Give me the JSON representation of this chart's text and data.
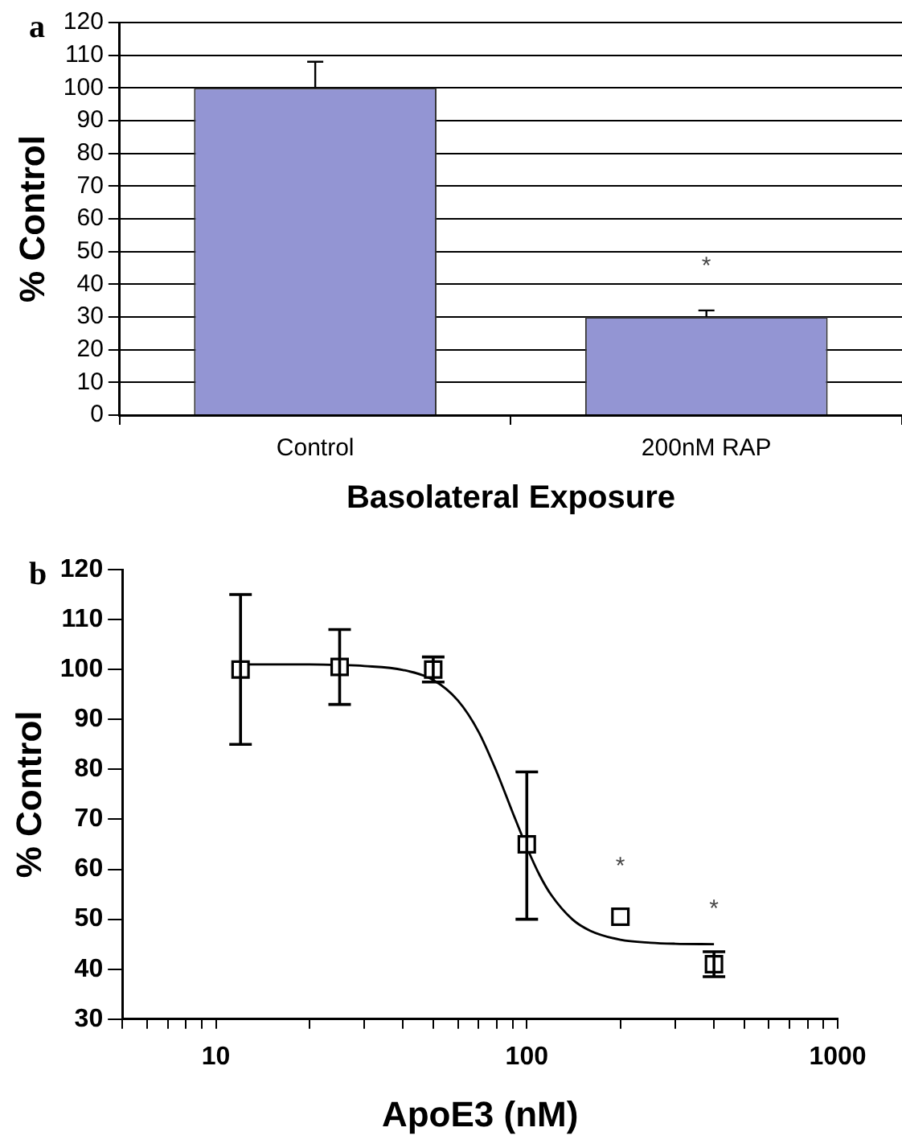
{
  "chart_data": [
    {
      "type": "bar",
      "xlabel": "Basolateral Exposure",
      "ylabel": "% Control",
      "categories": [
        "Control",
        "200nM RAP"
      ],
      "values": [
        100,
        30
      ],
      "color": "#9395d3",
      "errors": [
        [
          100,
          108
        ],
        [
          30,
          32
        ]
      ],
      "ylim": [
        0,
        120
      ],
      "yticks": [
        0,
        10,
        20,
        30,
        40,
        50,
        60,
        70,
        80,
        90,
        100,
        110,
        120
      ],
      "grid": "y",
      "legend": false,
      "annotations": [
        "a",
        {
          "text": "*",
          "x": "200nM RAP",
          "y": 30
        }
      ]
    },
    {
      "type": "scatter",
      "xlabel": "ApoE3 (nM)",
      "ylabel": "% Control",
      "log": "x",
      "grid": false,
      "legend": false,
      "xlim": [
        5,
        1000
      ],
      "xticks": [
        {
          "value": 5,
          "label": null
        },
        {
          "value": 6,
          "label": null
        },
        {
          "value": 7,
          "label": null
        },
        {
          "value": 8,
          "label": null
        },
        {
          "value": 9,
          "label": null
        },
        10,
        {
          "value": 20,
          "label": null
        },
        {
          "value": 30,
          "label": null
        },
        {
          "value": 40,
          "label": null
        },
        {
          "value": 50,
          "label": null
        },
        {
          "value": 60,
          "label": null
        },
        {
          "value": 70,
          "label": null
        },
        {
          "value": 80,
          "label": null
        },
        {
          "value": 90,
          "label": null
        },
        100,
        {
          "value": 200,
          "label": null
        },
        {
          "value": 300,
          "label": null
        },
        {
          "value": 400,
          "label": null
        },
        {
          "value": 500,
          "label": null
        },
        {
          "value": 600,
          "label": null
        },
        {
          "value": 700,
          "label": null
        },
        {
          "value": 800,
          "label": null
        },
        {
          "value": 900,
          "label": null
        },
        1000
      ],
      "ylim": [
        30,
        120
      ],
      "yticks": [
        30,
        40,
        50,
        60,
        70,
        80,
        90,
        100,
        110,
        120
      ],
      "series": [
        {
          "type": "scatter",
          "color": "#000000",
          "marker": "square",
          "x": [
            12,
            25,
            50,
            100,
            200,
            400
          ],
          "values": [
            100,
            100.5,
            100,
            65,
            50.5,
            41
          ],
          "errors": [
            [
              85,
              115
            ],
            [
              93,
              108
            ],
            [
              97.5,
              102.5
            ],
            [
              50,
              79.5
            ],
            null,
            [
              38.5,
              43.5
            ]
          ]
        },
        {
          "type": "line",
          "color": "#000000",
          "marker": "none",
          "line_style": "solid",
          "x": [
            12,
            15,
            20,
            25,
            30,
            40,
            50,
            60,
            70,
            80,
            90,
            100,
            110,
            120,
            140,
            160,
            200,
            250,
            300,
            400
          ],
          "values": [
            101,
            101,
            101,
            100.9,
            100.7,
            99.9,
            97.9,
            93.8,
            87.5,
            79.5,
            71.4,
            64.4,
            58.8,
            54.8,
            50,
            47.7,
            45.9,
            45.3,
            45.1,
            45
          ]
        }
      ],
      "annotations": [
        "b",
        {
          "text": "*",
          "x": 200,
          "y": 50.5
        },
        {
          "text": "*",
          "x": 400,
          "y": 41
        }
      ]
    }
  ]
}
